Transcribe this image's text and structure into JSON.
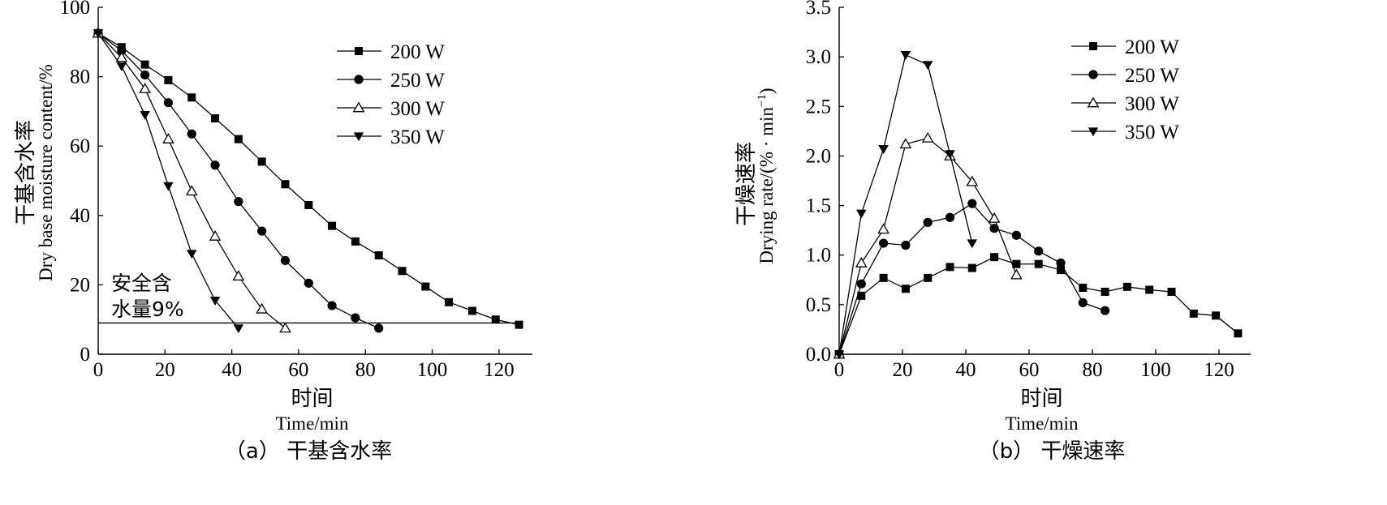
{
  "chart_data": [
    {
      "panel": "a",
      "type": "line",
      "caption": "（a） 干基含水率",
      "xlabel_cn": "时间",
      "xlabel_en": "Time/min",
      "ylabel_cn": "干基含水率",
      "ylabel_en": "Dry base moisture content/%",
      "xlim": [
        0,
        130
      ],
      "ylim": [
        0,
        100
      ],
      "xticks": [
        0,
        20,
        40,
        60,
        80,
        100,
        120
      ],
      "yticks": [
        0,
        20,
        40,
        60,
        80,
        100
      ],
      "ytick_labels": [
        "0",
        "20",
        "40",
        "60",
        "80",
        "100"
      ],
      "legend_position": "top-right",
      "annotation": {
        "line1": "安全含",
        "line2": "水量9%",
        "value": 9
      },
      "series": [
        {
          "name": "200 W",
          "marker": "square",
          "x": [
            0,
            7,
            14,
            21,
            28,
            35,
            42,
            49,
            56,
            63,
            70,
            77,
            84,
            91,
            98,
            105,
            112,
            119,
            126
          ],
          "y": [
            92.5,
            88.5,
            83.5,
            79,
            74,
            68,
            62,
            55.5,
            49,
            43,
            37,
            32.5,
            28.5,
            24,
            19.5,
            15,
            12.5,
            10,
            8.5
          ]
        },
        {
          "name": "250 W",
          "marker": "circle",
          "x": [
            0,
            7,
            14,
            21,
            28,
            35,
            42,
            49,
            56,
            63,
            70,
            77,
            84
          ],
          "y": [
            92.5,
            87.5,
            80.5,
            72.5,
            63.5,
            54.5,
            44,
            35.5,
            27,
            20.5,
            14,
            10.5,
            7.5
          ]
        },
        {
          "name": "300 W",
          "marker": "triangle-up",
          "x": [
            0,
            7,
            14,
            21,
            28,
            35,
            42,
            49,
            56
          ],
          "y": [
            92.5,
            85.5,
            76.5,
            62,
            47,
            34,
            22.5,
            13,
            7.5
          ]
        },
        {
          "name": "350 W",
          "marker": "triangle-down",
          "x": [
            0,
            7,
            14,
            21,
            28,
            35,
            42
          ],
          "y": [
            92.5,
            83,
            69,
            48.5,
            29,
            15.5,
            7.5
          ]
        }
      ]
    },
    {
      "panel": "b",
      "type": "line",
      "caption": "（b） 干燥速率",
      "xlabel_cn": "时间",
      "xlabel_en": "Time/min",
      "ylabel_cn": "干燥速率",
      "ylabel_en": "Drying rate/(% · min",
      "ylabel_en_sup": "−1",
      "ylabel_en_end": ")",
      "xlim": [
        0,
        130
      ],
      "ylim": [
        0,
        3.5
      ],
      "xticks": [
        0,
        20,
        40,
        60,
        80,
        100,
        120
      ],
      "yticks": [
        0,
        0.5,
        1.0,
        1.5,
        2.0,
        2.5,
        3.0,
        3.5
      ],
      "ytick_labels": [
        "0.0",
        "0.5",
        "1.0",
        "1.5",
        "2.0",
        "2.5",
        "3.0",
        "3.5"
      ],
      "legend_position": "top-right",
      "series": [
        {
          "name": "200 W",
          "marker": "square",
          "x": [
            0,
            7,
            14,
            21,
            28,
            35,
            42,
            49,
            56,
            63,
            70,
            77,
            84,
            91,
            98,
            105,
            112,
            119,
            126
          ],
          "y": [
            0,
            0.59,
            0.77,
            0.66,
            0.77,
            0.88,
            0.87,
            0.98,
            0.91,
            0.91,
            0.85,
            0.67,
            0.63,
            0.68,
            0.65,
            0.63,
            0.41,
            0.39,
            0.21
          ]
        },
        {
          "name": "250 W",
          "marker": "circle",
          "x": [
            0,
            7,
            14,
            21,
            28,
            35,
            42,
            49,
            56,
            63,
            70,
            77,
            84
          ],
          "y": [
            0,
            0.71,
            1.12,
            1.1,
            1.33,
            1.38,
            1.52,
            1.27,
            1.2,
            1.04,
            0.92,
            0.52,
            0.44
          ]
        },
        {
          "name": "300 W",
          "marker": "triangle-up",
          "x": [
            0,
            7,
            14,
            21,
            28,
            35,
            42,
            49,
            56
          ],
          "y": [
            0,
            0.92,
            1.26,
            2.12,
            2.18,
            2.0,
            1.74,
            1.37,
            0.8
          ]
        },
        {
          "name": "350 W",
          "marker": "triangle-down",
          "x": [
            0,
            7,
            14,
            21,
            28,
            35,
            42
          ],
          "y": [
            0,
            1.42,
            2.07,
            3.02,
            2.92,
            2.02,
            1.12
          ]
        }
      ]
    }
  ]
}
